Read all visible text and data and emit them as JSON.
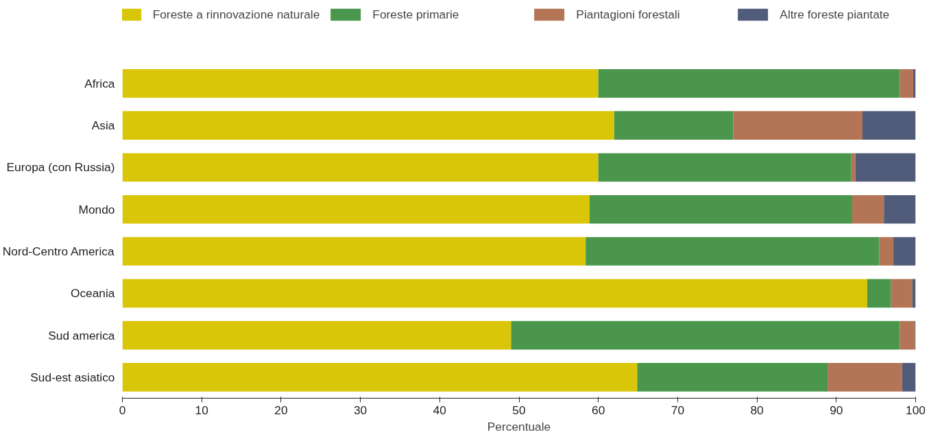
{
  "chart_data": {
    "type": "bar",
    "orientation": "horizontal",
    "stacked": true,
    "xlabel": "Percentuale",
    "categories": [
      "Africa",
      "Asia",
      "Europa (con Russia)",
      "Mondo",
      "Nord-Centro America",
      "Oceania",
      "Sud america",
      "Sud-est asiatico"
    ],
    "series": [
      {
        "name": "Foreste a rinnovazione naturale",
        "color": "#d9c608",
        "values": [
          60,
          62,
          60,
          58.9,
          58.4,
          93.9,
          49,
          64.9
        ]
      },
      {
        "name": "Foreste primarie",
        "color": "#4a964d",
        "values": [
          38,
          15,
          31.9,
          33.1,
          37,
          3,
          49,
          24
        ]
      },
      {
        "name": "Piantagioni forestali",
        "color": "#b37556",
        "values": [
          1.7,
          16.3,
          0.5,
          4,
          1.8,
          2.7,
          1.9,
          9.4
        ]
      },
      {
        "name": "Altre foreste piantate",
        "color": "#515c7a",
        "values": [
          0.3,
          6.7,
          7.6,
          4,
          2.8,
          0.4,
          0.1,
          1.7
        ]
      }
    ],
    "xlim": [
      0,
      100
    ],
    "xticks": [
      0,
      10,
      20,
      30,
      40,
      50,
      60,
      70,
      80,
      90,
      100
    ],
    "grid": false,
    "legend": "top"
  }
}
